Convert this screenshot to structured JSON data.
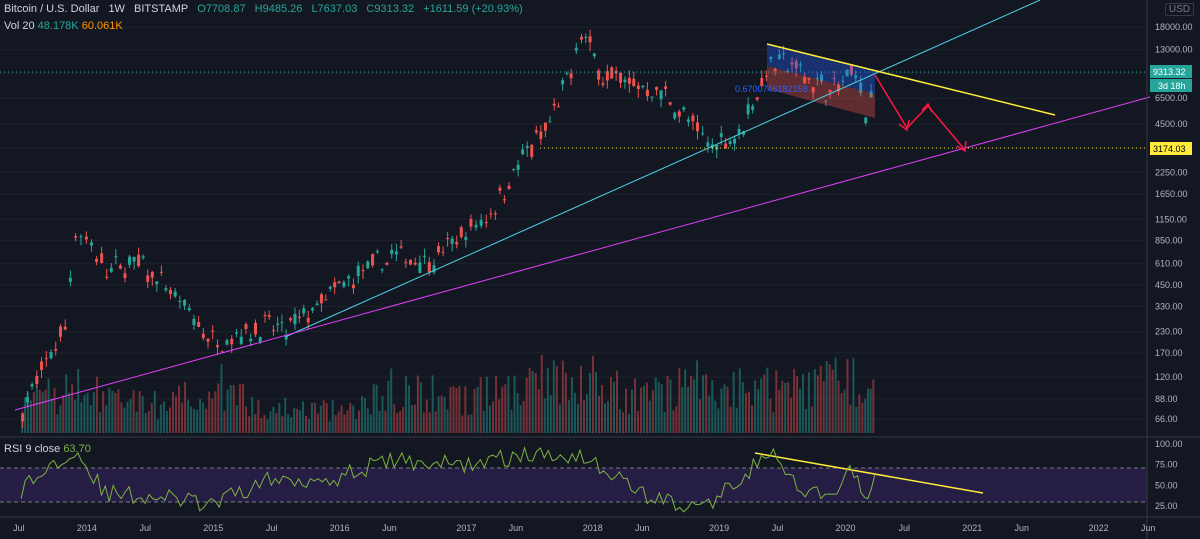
{
  "header": {
    "symbol": "Bitcoin / U.S. Dollar",
    "interval": "1W",
    "exchange": "BITSTAMP",
    "open": "O7708.87",
    "high": "H9485.26",
    "low": "L7637.03",
    "close": "C9313.32",
    "change": "+1611.59 (+20.93%)",
    "currency": "USD"
  },
  "volume": {
    "label": "Vol 20",
    "value1": "48.178K",
    "value2": "60.061K"
  },
  "rsi": {
    "label": "RSI 9 close",
    "value": "63.70"
  },
  "price_tags": {
    "last": "9313.32",
    "countdown": "3d 18h",
    "support": "3174.03",
    "fib": "0.6700746182158"
  },
  "colors": {
    "background": "#131722",
    "up": "#26a69a",
    "down": "#ef5350",
    "yellow_trend": "#ffeb3b",
    "cyan_trend": "#4dd0e1",
    "magenta_trend": "#e040fb",
    "rsi_line": "#7cb342",
    "rsi_band": "#2a1f4a",
    "arrows": "#ff1744"
  },
  "chart_data": [
    {
      "type": "line",
      "title": "Bitcoin / U.S. Dollar, 1W, BITSTAMP",
      "scale": "log",
      "ylim": [
        50,
        25000
      ],
      "y_ticks": [
        "18000.00",
        "13000.00",
        "9313.32",
        "6500.00",
        "4500.00",
        "3174.03",
        "2250.00",
        "1650.00",
        "1150.00",
        "850.00",
        "610.00",
        "450.00",
        "330.00",
        "230.00",
        "170.00",
        "120.00",
        "88.00",
        "66.00"
      ],
      "x_ticks": [
        "Jul",
        "2014",
        "Jul",
        "2015",
        "Jul",
        "2016",
        "Jun",
        "2017",
        "Jun",
        "2018",
        "Jun",
        "2019",
        "Jul",
        "2020",
        "Jul",
        "2021",
        "Jun",
        "2022",
        "Jun"
      ],
      "series": [
        {
          "x": [
            "2013-07",
            "2013-11",
            "2013-12",
            "2014-01",
            "2014-03",
            "2014-06",
            "2014-09",
            "2015-01",
            "2015-06",
            "2015-08",
            "2016-01",
            "2016-06",
            "2016-10",
            "2017-01",
            "2017-03",
            "2017-06",
            "2017-09",
            "2017-11",
            "2017-12",
            "2018-02",
            "2018-05",
            "2018-08",
            "2018-11",
            "2018-12",
            "2019-03",
            "2019-06",
            "2019-08",
            "2019-10",
            "2019-12",
            "2020-02",
            "2020-03",
            "2020-04"
          ],
          "values": [
            75,
            250,
            1000,
            850,
            550,
            620,
            400,
            200,
            250,
            230,
            430,
            680,
            640,
            950,
            1150,
            2500,
            4500,
            9500,
            17000,
            9000,
            8000,
            6800,
            4000,
            3300,
            3900,
            11000,
            10500,
            8200,
            7200,
            9800,
            5000,
            9313.32
          ]
        }
      ],
      "levels": {
        "last": 9313.32,
        "support": 3174.03
      },
      "fib_label": "0.6700746182158"
    },
    {
      "type": "bar",
      "title": "Vol 20",
      "series": [
        {
          "x": [
            "2013-07",
            "2013-12",
            "2014-03",
            "2014-09",
            "2015-01",
            "2015-06",
            "2016-01",
            "2016-06",
            "2017-01",
            "2017-06",
            "2017-12",
            "2018-06",
            "2018-11",
            "2019-06",
            "2020-03",
            "2020-04"
          ],
          "values": [
            30,
            55,
            40,
            30,
            60,
            30,
            25,
            50,
            40,
            55,
            70,
            40,
            60,
            50,
            65,
            48
          ]
        }
      ]
    },
    {
      "type": "line",
      "title": "RSI 9 close",
      "ylim": [
        15,
        105
      ],
      "y_ticks": [
        "100.00",
        "75.00",
        "50.00",
        "25.00"
      ],
      "bands": [
        30,
        70
      ],
      "series": [
        {
          "x": [
            "2013-07",
            "2013-12",
            "2014-03",
            "2014-09",
            "2015-01",
            "2015-06",
            "2016-01",
            "2016-06",
            "2017-01",
            "2017-06",
            "2017-12",
            "2018-06",
            "2018-11",
            "2019-01",
            "2019-06",
            "2019-09",
            "2019-12",
            "2020-02",
            "2020-03",
            "2020-04"
          ],
          "values": [
            45,
            95,
            40,
            35,
            25,
            55,
            60,
            80,
            75,
            85,
            88,
            40,
            20,
            35,
            90,
            40,
            35,
            70,
            30,
            63.7
          ]
        }
      ]
    }
  ]
}
